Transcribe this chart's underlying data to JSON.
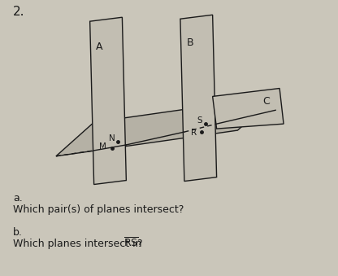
{
  "title_num": "2.",
  "bg_color": "#cac6ba",
  "plane_color": "#1a1a1a",
  "plane_fill": "#c2beb2",
  "plane_fill_horiz": "#b5b1a5",
  "label_A": "A",
  "label_B": "B",
  "label_C": "C",
  "label_M": "M",
  "label_N": "N",
  "label_R": "R",
  "label_S": "S",
  "question_a_label": "a.",
  "question_a_text": "Which pair(s) of planes intersect?",
  "question_b_label": "b.",
  "question_b_text": "Which planes intersect in ",
  "question_b_end": "?"
}
